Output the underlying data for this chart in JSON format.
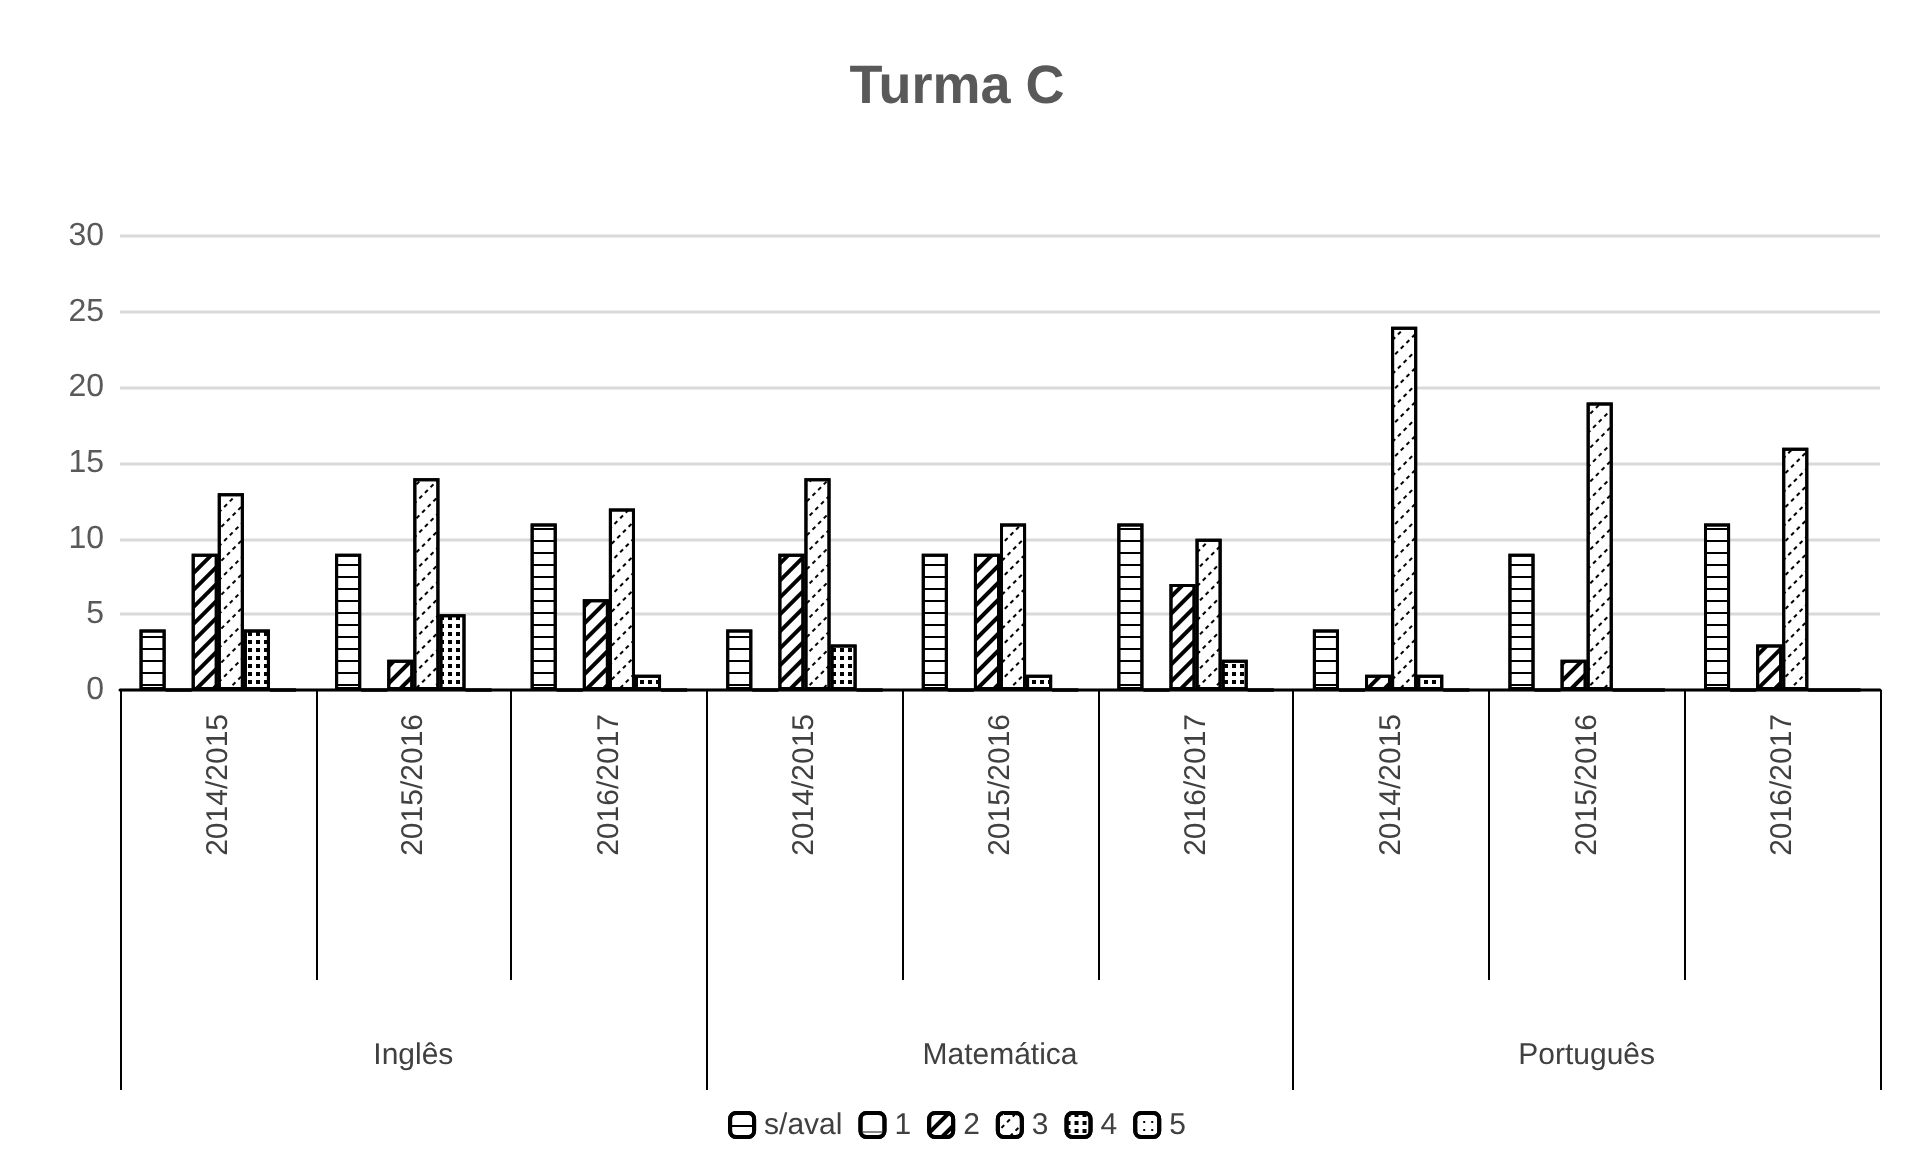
{
  "chart_data": {
    "type": "bar",
    "title": "Turma C",
    "categories": [
      "2014/2015",
      "2015/2016",
      "2016/2017",
      "2014/2015",
      "2015/2016",
      "2016/2017",
      "2014/2015",
      "2015/2016",
      "2016/2017"
    ],
    "annotations": [
      "Inglês",
      "Matemática",
      "Português"
    ],
    "series": [
      {
        "name": "s/aval",
        "color": "#ffffff",
        "values": [
          4,
          9,
          11,
          4,
          9,
          11,
          4,
          9,
          11
        ]
      },
      {
        "name": "1",
        "color": "#ffffff",
        "values": [
          0,
          0,
          0,
          0,
          0,
          0,
          0,
          0,
          0
        ]
      },
      {
        "name": "2",
        "color": "#ffffff",
        "values": [
          9,
          2,
          6,
          9,
          9,
          7,
          1,
          2,
          3
        ]
      },
      {
        "name": "3",
        "color": "#ffffff",
        "values": [
          13,
          14,
          12,
          14,
          11,
          10,
          24,
          19,
          16
        ]
      },
      {
        "name": "4",
        "color": "#ffffff",
        "values": [
          4,
          5,
          1,
          3,
          1,
          2,
          1,
          0,
          0
        ]
      },
      {
        "name": "5",
        "color": "#ffffff",
        "values": [
          0,
          0,
          0,
          0,
          0,
          0,
          0,
          0,
          0
        ]
      }
    ],
    "ylim": [
      0,
      30
    ],
    "yticks": [
      0,
      5,
      10,
      15,
      20,
      25,
      30
    ],
    "grid": "y",
    "legend": "bottom"
  }
}
